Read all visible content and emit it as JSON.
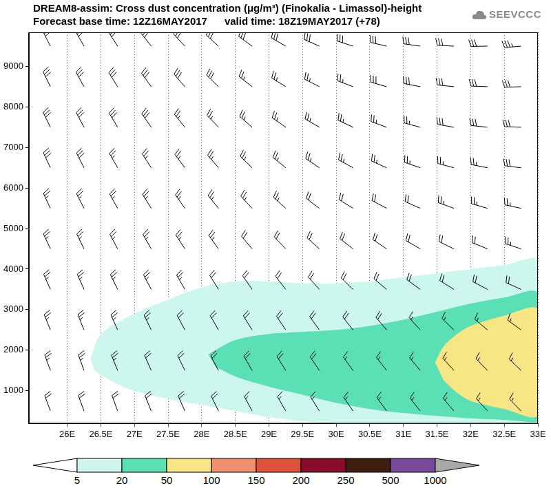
{
  "chart_data": {
    "type": "contour",
    "title": "DREAM8-assim: Cross dust concentration (μg/m³) (Finokalia - Limassol)-height",
    "subtitle": "Forecast base time: 12Z16MAY2017      valid time: 18Z19MAY2017 (+78)",
    "logo": "SEEVCCC",
    "xlim": [
      25.43,
      33
    ],
    "xticks": [
      {
        "value": 26,
        "label": "26E"
      },
      {
        "value": 26.5,
        "label": "26.5E"
      },
      {
        "value": 27,
        "label": "27E"
      },
      {
        "value": 27.5,
        "label": "27.5E"
      },
      {
        "value": 28,
        "label": "28E"
      },
      {
        "value": 28.5,
        "label": "28.5E"
      },
      {
        "value": 29,
        "label": "29E"
      },
      {
        "value": 29.5,
        "label": "29.5E"
      },
      {
        "value": 30,
        "label": "30E"
      },
      {
        "value": 30.5,
        "label": "30.5E"
      },
      {
        "value": 31,
        "label": "31E"
      },
      {
        "value": 31.5,
        "label": "31.5E"
      },
      {
        "value": 32,
        "label": "32E"
      },
      {
        "value": 32.5,
        "label": "32.5E"
      },
      {
        "value": 33,
        "label": "33E"
      }
    ],
    "ylim": [
      190,
      9840
    ],
    "yticks": [
      1000,
      2000,
      3000,
      4000,
      5000,
      6000,
      7000,
      8000,
      9000
    ],
    "grid": "x",
    "contours": [
      {
        "level": 5,
        "points": [
          [
            26.35,
            1800
          ],
          [
            26.5,
            2400
          ],
          [
            27,
            2900
          ],
          [
            27.5,
            3250
          ],
          [
            28,
            3550
          ],
          [
            28.5,
            3700
          ],
          [
            29,
            3700
          ],
          [
            29.5,
            3650
          ],
          [
            30,
            3650
          ],
          [
            30.5,
            3700
          ],
          [
            31,
            3800
          ],
          [
            31.5,
            3900
          ],
          [
            32,
            4000
          ],
          [
            32.5,
            4100
          ],
          [
            33,
            4200
          ],
          [
            33,
            190
          ],
          [
            30,
            190
          ],
          [
            29.5,
            250
          ],
          [
            29,
            350
          ],
          [
            28.5,
            500
          ],
          [
            28,
            650
          ],
          [
            27.5,
            800
          ],
          [
            27,
            1000
          ],
          [
            26.7,
            1200
          ],
          [
            26.4,
            1500
          ]
        ]
      },
      {
        "level": 20,
        "points": [
          [
            28.1,
            1900
          ],
          [
            28.5,
            2250
          ],
          [
            29,
            2400
          ],
          [
            29.5,
            2450
          ],
          [
            30,
            2500
          ],
          [
            30.5,
            2600
          ],
          [
            31,
            2750
          ],
          [
            31.5,
            2950
          ],
          [
            32,
            3150
          ],
          [
            32.5,
            3300
          ],
          [
            33,
            3400
          ],
          [
            33,
            250
          ],
          [
            32.5,
            280
          ],
          [
            32,
            320
          ],
          [
            31.5,
            380
          ],
          [
            31,
            450
          ],
          [
            30.5,
            550
          ],
          [
            30,
            700
          ],
          [
            29.5,
            900
          ],
          [
            29,
            1100
          ],
          [
            28.5,
            1350
          ],
          [
            28.2,
            1600
          ]
        ]
      },
      {
        "level": 50,
        "points": [
          [
            31.47,
            1700
          ],
          [
            31.6,
            2100
          ],
          [
            31.8,
            2400
          ],
          [
            32,
            2600
          ],
          [
            32.5,
            2850
          ],
          [
            33,
            3000
          ],
          [
            33,
            400
          ],
          [
            32.5,
            550
          ],
          [
            32,
            750
          ],
          [
            31.8,
            950
          ],
          [
            31.6,
            1250
          ]
        ]
      }
    ],
    "colorbar": {
      "levels": [
        5,
        20,
        50,
        100,
        150,
        200,
        250,
        500,
        1000
      ],
      "colors": [
        "#ffffff",
        "#cdf6ef",
        "#5be0b5",
        "#f8e685",
        "#f0906f",
        "#df533b",
        "#8a0c2a",
        "#3d1e0e",
        "#7a4a9a",
        "#a8a8a8"
      ]
    },
    "wind": {
      "x": [
        25.75,
        26.25,
        26.75,
        27.25,
        27.75,
        28.25,
        28.75,
        29.25,
        29.75,
        30.25,
        30.75,
        31.25,
        31.75,
        32.25,
        32.75
      ],
      "height": [
        500,
        1500,
        2500,
        3500,
        4500,
        5500,
        6500,
        7500,
        8500,
        9500
      ],
      "direction": [
        [
          340,
          340,
          340,
          338,
          336,
          334,
          332,
          330,
          328,
          326,
          324,
          322,
          320,
          318,
          316
        ],
        [
          340,
          340,
          338,
          336,
          334,
          332,
          330,
          328,
          326,
          324,
          322,
          320,
          318,
          316,
          314
        ],
        [
          338,
          338,
          336,
          334,
          332,
          330,
          328,
          326,
          324,
          322,
          320,
          318,
          314,
          310,
          306
        ],
        [
          336,
          336,
          334,
          332,
          330,
          328,
          325,
          322,
          318,
          314,
          310,
          306,
          302,
          298,
          294
        ],
        [
          335,
          334,
          332,
          330,
          327,
          324,
          320,
          316,
          312,
          308,
          304,
          300,
          296,
          292,
          288
        ],
        [
          335,
          333,
          331,
          328,
          325,
          321,
          317,
          312,
          307,
          302,
          298,
          294,
          290,
          286,
          282
        ],
        [
          335,
          333,
          330,
          327,
          323,
          319,
          314,
          309,
          304,
          299,
          294,
          289,
          285,
          281,
          277
        ],
        [
          334,
          332,
          329,
          325,
          321,
          316,
          311,
          305,
          300,
          295,
          290,
          285,
          280,
          276,
          272
        ],
        [
          334,
          331,
          328,
          324,
          319,
          314,
          308,
          302,
          297,
          291,
          286,
          281,
          276,
          272,
          268
        ],
        [
          333,
          330,
          327,
          322,
          317,
          312,
          306,
          300,
          294,
          288,
          283,
          278,
          273,
          269,
          265
        ]
      ],
      "speed": [
        [
          20,
          20,
          20,
          20,
          20,
          20,
          15,
          15,
          15,
          15,
          15,
          15,
          15,
          15,
          15
        ],
        [
          25,
          25,
          25,
          20,
          20,
          20,
          20,
          20,
          20,
          15,
          15,
          15,
          15,
          15,
          15
        ],
        [
          25,
          25,
          25,
          25,
          20,
          20,
          20,
          20,
          20,
          20,
          20,
          15,
          15,
          15,
          15
        ],
        [
          25,
          25,
          25,
          25,
          25,
          20,
          20,
          20,
          20,
          20,
          20,
          20,
          20,
          20,
          20
        ],
        [
          25,
          25,
          25,
          25,
          25,
          25,
          20,
          20,
          20,
          20,
          20,
          20,
          20,
          20,
          25
        ],
        [
          25,
          25,
          25,
          25,
          25,
          25,
          25,
          25,
          20,
          20,
          20,
          20,
          25,
          25,
          25
        ],
        [
          30,
          30,
          25,
          25,
          25,
          25,
          25,
          25,
          25,
          25,
          25,
          25,
          25,
          25,
          30
        ],
        [
          30,
          30,
          30,
          30,
          25,
          25,
          25,
          25,
          25,
          25,
          25,
          25,
          30,
          30,
          30
        ],
        [
          30,
          30,
          30,
          30,
          30,
          30,
          25,
          25,
          25,
          25,
          30,
          30,
          30,
          30,
          30
        ],
        [
          30,
          30,
          30,
          30,
          30,
          30,
          30,
          30,
          30,
          30,
          30,
          30,
          30,
          30,
          35
        ]
      ]
    }
  }
}
